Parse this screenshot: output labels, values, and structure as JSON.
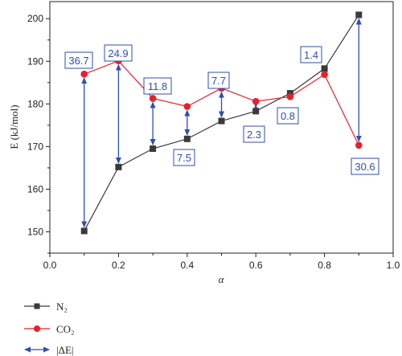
{
  "chart_data": {
    "type": "line",
    "xlabel": "α",
    "ylabel": "E (kJ/mol)",
    "xlim": [
      0.0,
      1.0
    ],
    "ylim": [
      145,
      204
    ],
    "x_ticks": [
      "0.0",
      "0.2",
      "0.4",
      "0.6",
      "0.8",
      "1.0"
    ],
    "y_ticks": [
      "150",
      "160",
      "170",
      "180",
      "190",
      "200"
    ],
    "x": [
      0.1,
      0.2,
      0.3,
      0.4,
      0.5,
      0.6,
      0.7,
      0.8,
      0.9
    ],
    "series": [
      {
        "name": "N₂",
        "marker": "square",
        "color": "#3a3a3a",
        "values": [
          150.2,
          165.2,
          169.5,
          171.8,
          176.0,
          178.3,
          182.5,
          188.3,
          200.9
        ]
      },
      {
        "name": "CO₂",
        "marker": "circle",
        "color": "#e8202a",
        "values": [
          187.0,
          190.1,
          181.3,
          179.4,
          183.7,
          180.6,
          181.7,
          186.9,
          170.3
        ]
      }
    ],
    "delta_name": "|ΔE|",
    "delta_color": "#2f4eb0",
    "annotations": [
      {
        "x": 0.1,
        "label": "36.7",
        "arrow": true
      },
      {
        "x": 0.2,
        "label": "24.9",
        "arrow": true
      },
      {
        "x": 0.3,
        "label": "11.8",
        "arrow": true
      },
      {
        "x": 0.4,
        "label": "7.5",
        "arrow": true
      },
      {
        "x": 0.5,
        "label": "7.7",
        "arrow": true
      },
      {
        "x": 0.6,
        "label": "2.3",
        "arrow": true
      },
      {
        "x": 0.7,
        "label": "0.8",
        "arrow": false
      },
      {
        "x": 0.8,
        "label": "1.4",
        "arrow": false
      },
      {
        "x": 0.9,
        "label": "30.6",
        "arrow": true
      }
    ],
    "grid": false,
    "legend_position": "bottom-left"
  }
}
